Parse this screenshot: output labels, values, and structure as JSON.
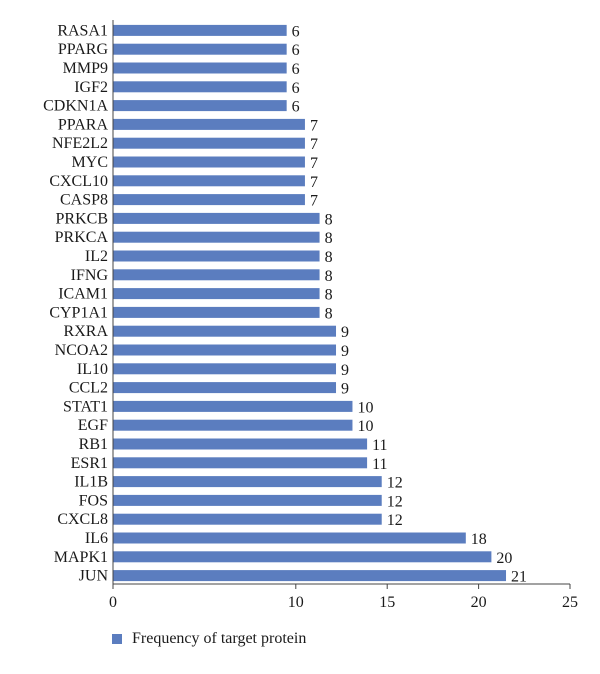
{
  "chart_data": {
    "type": "bar",
    "orientation": "horizontal",
    "categories": [
      "RASA1",
      "PPARG",
      "MMP9",
      "IGF2",
      "CDKN1A",
      "PPARA",
      "NFE2L2",
      "MYC",
      "CXCL10",
      "CASP8",
      "PRKCB",
      "PRKCA",
      "IL2",
      "IFNG",
      "ICAM1",
      "CYP1A1",
      "RXRA",
      "NCOA2",
      "IL10",
      "CCL2",
      "STAT1",
      "EGF",
      "RB1",
      "ESR1",
      "IL1B",
      "FOS",
      "CXCL8",
      "IL6",
      "MAPK1",
      "JUN"
    ],
    "series": [
      {
        "name": "Frequency of target protein",
        "values": [
          6,
          6,
          6,
          6,
          6,
          7,
          7,
          7,
          7,
          7,
          8,
          8,
          8,
          8,
          8,
          8,
          9,
          9,
          9,
          9,
          10,
          10,
          11,
          11,
          12,
          12,
          12,
          18,
          20,
          21
        ],
        "display_values": [
          9.5,
          9.5,
          9.5,
          9.5,
          9.5,
          10.5,
          10.5,
          10.5,
          10.5,
          10.5,
          11.3,
          11.3,
          11.3,
          11.3,
          11.3,
          11.3,
          12.2,
          12.2,
          12.2,
          12.2,
          13.1,
          13.1,
          13.9,
          13.9,
          14.7,
          14.7,
          14.7,
          19.3,
          20.7,
          21.5
        ]
      }
    ],
    "data_labels": [
      "6",
      "6",
      "6",
      "6",
      "6",
      "7",
      "7",
      "7",
      "7",
      "7",
      "8",
      "8",
      "8",
      "8",
      "8",
      "8",
      "9",
      "9",
      "9",
      "9",
      "10",
      "10",
      "11",
      "11",
      "12",
      "12",
      "12",
      "18",
      "20",
      "21"
    ],
    "xlim": [
      0,
      25
    ],
    "x_ticks": [
      "0",
      "10",
      "15",
      "20",
      "25"
    ],
    "x_tick_values": [
      0,
      10,
      15,
      20,
      25
    ],
    "grid": false,
    "legend_position": "bottom-left",
    "bar_color": "#5b7dbf"
  }
}
